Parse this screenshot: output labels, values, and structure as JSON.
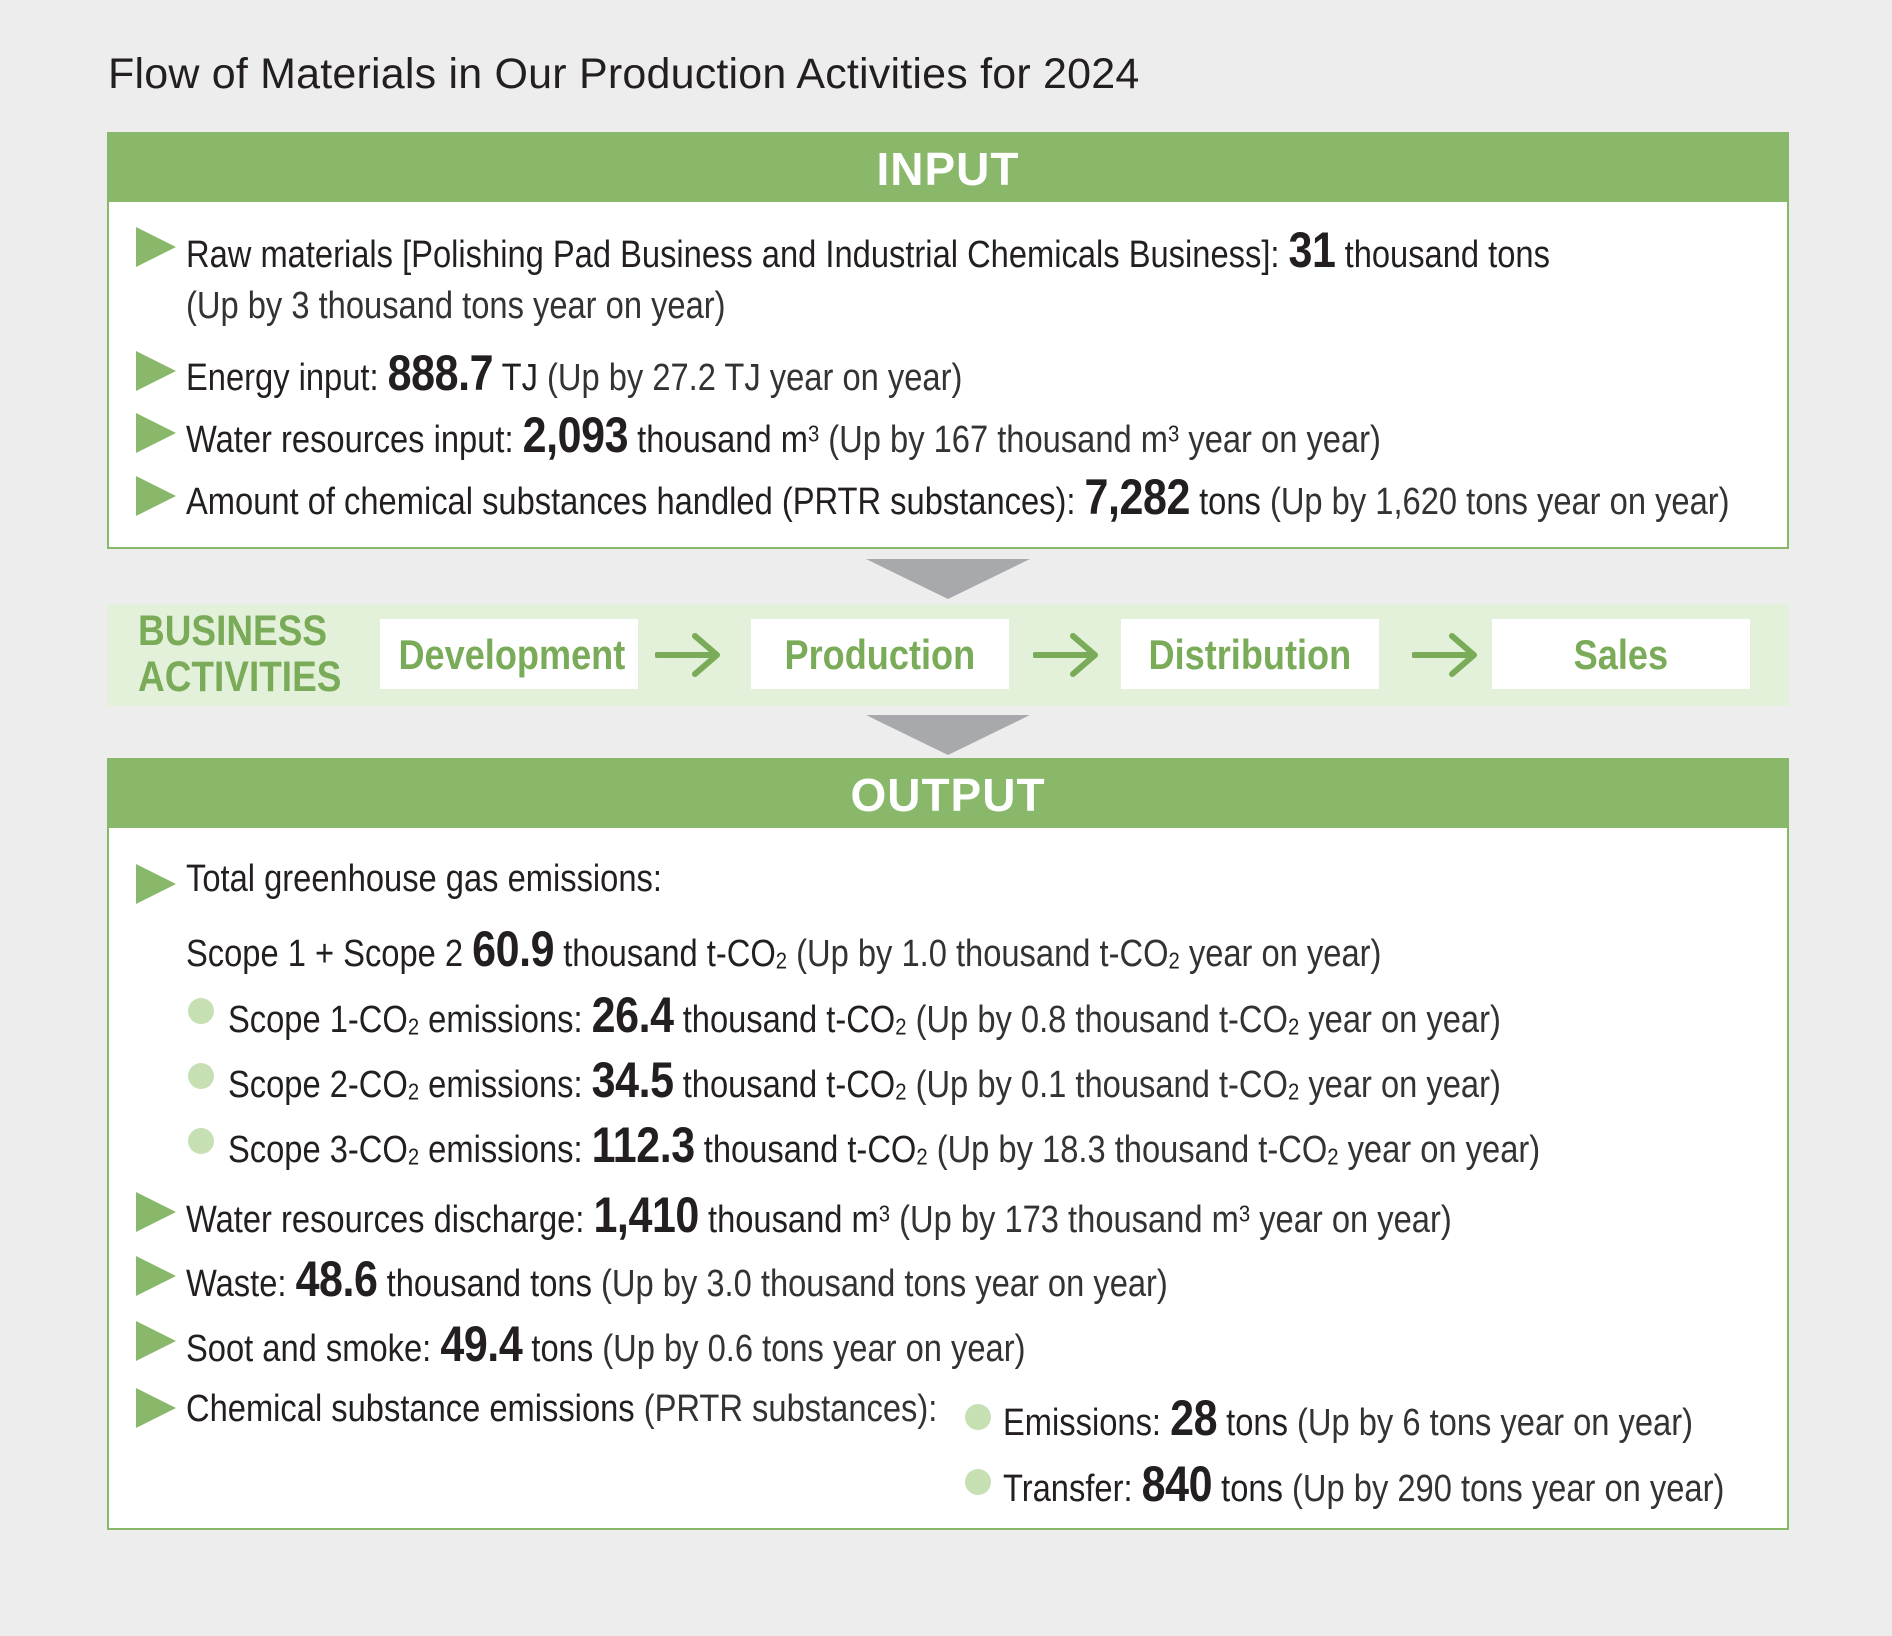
{
  "title": "Flow of Materials in Our Production Activities for 2024",
  "input": {
    "header": "INPUT",
    "raw_materials": {
      "label": "Raw materials [Polishing Pad Business and Industrial Chemicals Business]: ",
      "value": "31",
      "unit": " thousand tons",
      "note": "(Up by 3 thousand tons year on year)"
    },
    "energy": {
      "label": "Energy input: ",
      "value": "888.7",
      "unit": " TJ ",
      "note": "(Up by 27.2 TJ year on year)"
    },
    "water": {
      "label": "Water resources input: ",
      "value": "2,093",
      "unit": " thousand m",
      "unit_sup": "3",
      "note_pre": " (Up by 167 thousand m",
      "note_sup": "3",
      "note_post": " year on year)"
    },
    "chemicals": {
      "label": "Amount of chemical substances handled (PRTR substances): ",
      "value": "7,282",
      "unit": " tons ",
      "note": "(Up by 1,620 tons year on year)"
    }
  },
  "business": {
    "label_line1": "BUSINESS",
    "label_line2": "ACTIVITIES",
    "steps": [
      "Development",
      "Production",
      "Distribution",
      "Sales"
    ]
  },
  "output": {
    "header": "OUTPUT",
    "ghg": {
      "label": "Total greenhouse gas emissions:",
      "scope12_label": "Scope 1 + Scope 2 ",
      "scope12_value": "60.9",
      "scope12_unit": " thousand t-CO",
      "scope12_note_pre": " (Up by 1.0 thousand t-CO",
      "scope12_note_post": " year on year)"
    },
    "scopes": [
      {
        "label": "Scope 1-CO",
        "label_post": " emissions: ",
        "value": "26.4",
        "unit": " thousand t-CO",
        "note_pre": " (Up by 0.8 thousand t-CO",
        "note_post": " year on year)"
      },
      {
        "label": "Scope 2-CO",
        "label_post": " emissions: ",
        "value": "34.5",
        "unit": " thousand t-CO",
        "note_pre": " (Up by 0.1 thousand t-CO",
        "note_post": " year on year)"
      },
      {
        "label": "Scope 3-CO",
        "label_post": " emissions: ",
        "value": "112.3",
        "unit": " thousand t-CO",
        "note_pre": " (Up by 18.3 thousand t-CO",
        "note_post": " year on year)"
      }
    ],
    "sub2": "2",
    "water": {
      "label": "Water resources discharge: ",
      "value": "1,410",
      "unit": " thousand m",
      "unit_sup": "3",
      "note_pre": " (Up by 173 thousand m",
      "note_sup": "3",
      "note_post": " year on year)"
    },
    "waste": {
      "label": "Waste: ",
      "value": "48.6",
      "unit": " thousand tons ",
      "note": "(Up by 3.0 thousand tons year on year)"
    },
    "soot": {
      "label": "Soot and smoke: ",
      "value": "49.4",
      "unit": " tons ",
      "note": "(Up by 0.6 tons year on year)"
    },
    "chemical": {
      "label": "Chemical substance emissions ",
      "label_note": "(PRTR substances):",
      "emissions_label": "Emissions: ",
      "emissions_value": "28",
      "emissions_unit": " tons ",
      "emissions_note": "(Up by 6 tons year on year)",
      "transfer_label": "Transfer: ",
      "transfer_value": "840",
      "transfer_unit": " tons ",
      "transfer_note": "(Up by 290 tons year on year)"
    }
  },
  "colors": {
    "green_header": "#8ab86a",
    "green_text": "#7aab58",
    "light_green_band": "#e3f1da",
    "bullet_dot": "#c6e0b4",
    "arrow_gray": "#a7a9ac",
    "background": "#ededed"
  }
}
